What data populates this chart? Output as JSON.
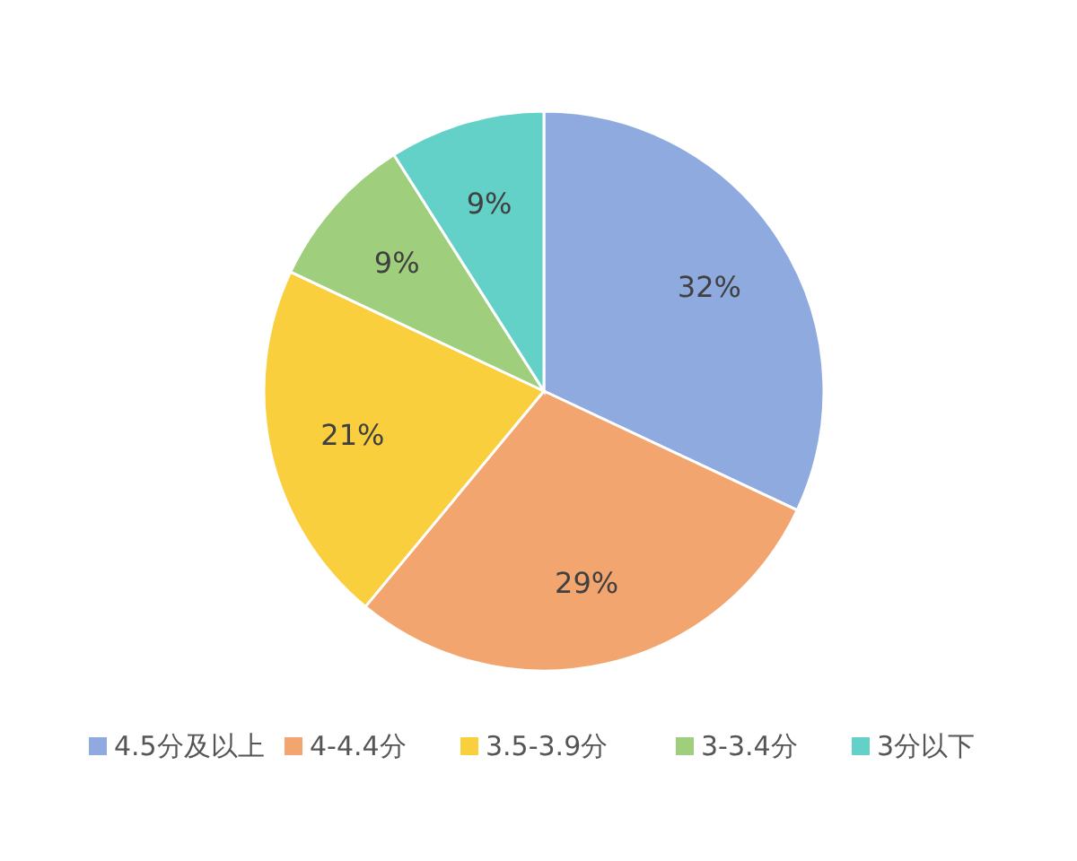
{
  "chart_data": {
    "type": "pie",
    "categories": [
      "4.5分及以上",
      "4-4.4分",
      "3.5-3.9分",
      "3-3.4分",
      "3分以下"
    ],
    "values": [
      32,
      29,
      21,
      9,
      9
    ],
    "colors": [
      "#8eaadf",
      "#f2a56f",
      "#f9cf3e",
      "#9fcf7c",
      "#63d1c8"
    ],
    "value_labels": [
      "32%",
      "29%",
      "21%",
      "9%",
      "9%"
    ],
    "legend": "bottom"
  }
}
